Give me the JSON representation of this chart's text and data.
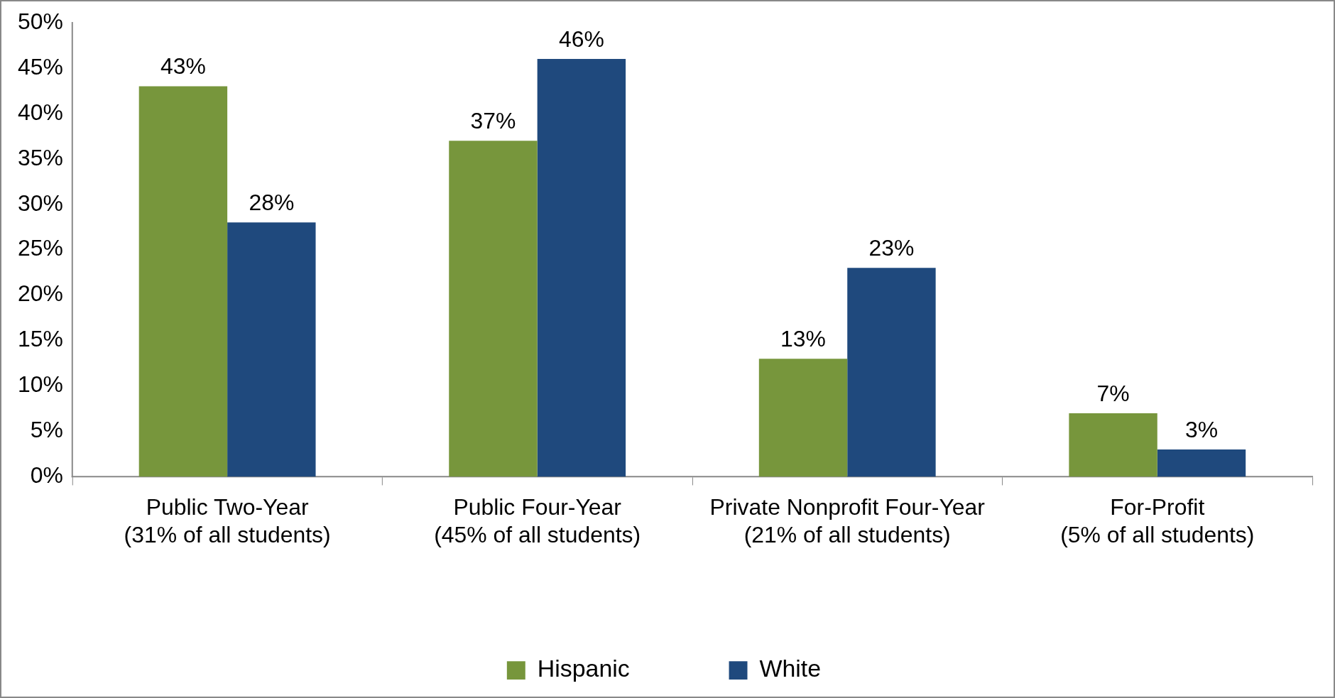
{
  "chart_data": {
    "type": "bar",
    "categories": [
      "Public Two-Year (31% of all students)",
      "Public Four-Year (45% of all students)",
      "Private Nonprofit Four-Year (21% of all students)",
      "For-Profit (5% of all students)"
    ],
    "series": [
      {
        "name": "Hispanic",
        "color": "#77963c",
        "values": [
          43,
          37,
          13,
          7
        ],
        "value_labels": [
          "43%",
          "37%",
          "13%",
          "7%"
        ]
      },
      {
        "name": "White",
        "color": "#1f497d",
        "values": [
          28,
          46,
          23,
          3
        ],
        "value_labels": [
          "28%",
          "46%",
          "23%",
          "3%"
        ]
      }
    ],
    "ylim": [
      0,
      50
    ],
    "yticks": [
      {
        "value": 0,
        "label": "0%"
      },
      {
        "value": 5,
        "label": "5%"
      },
      {
        "value": 10,
        "label": "10%"
      },
      {
        "value": 15,
        "label": "15%"
      },
      {
        "value": 20,
        "label": "20%"
      },
      {
        "value": 25,
        "label": "25%"
      },
      {
        "value": 30,
        "label": "30%"
      },
      {
        "value": 35,
        "label": "35%"
      },
      {
        "value": 40,
        "label": "40%"
      },
      {
        "value": 45,
        "label": "45%"
      },
      {
        "value": 50,
        "label": "50%"
      }
    ],
    "grid": false,
    "legend": "bottom"
  }
}
